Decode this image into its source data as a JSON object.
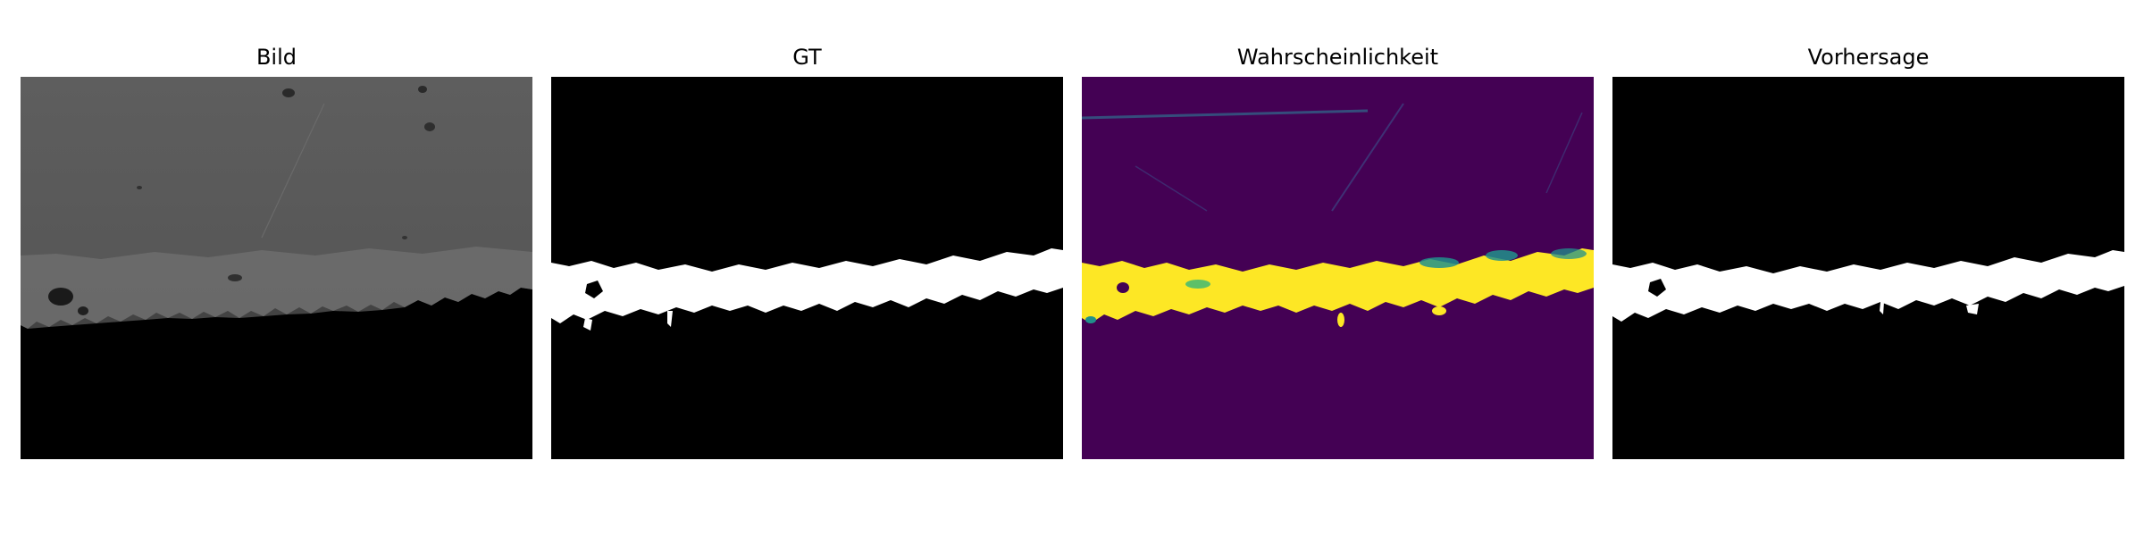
{
  "figure": {
    "panels": [
      {
        "title": "Bild",
        "content": "grayscale micrograph of coating cross-section"
      },
      {
        "title": "GT",
        "content": "binary ground-truth mask"
      },
      {
        "title": "Wahrscheinlichkeit",
        "content": "probability map (viridis)"
      },
      {
        "title": "Vorhersage",
        "content": "binary predicted mask"
      }
    ]
  },
  "colors": {
    "background": "#ffffff",
    "mask_on": "#ffffff",
    "mask_off": "#000000",
    "prob_low": "#440154",
    "prob_mid": "#21908c",
    "prob_high": "#fde725",
    "micrograph_top": "#5a5a5a"
  }
}
